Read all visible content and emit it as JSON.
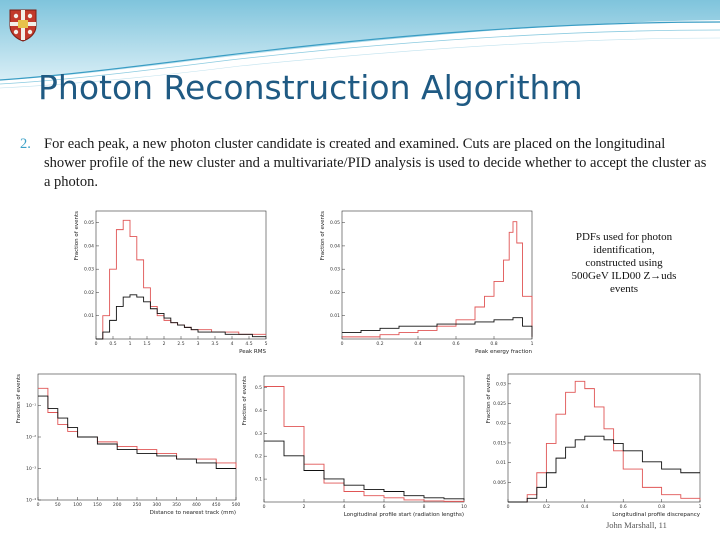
{
  "slide": {
    "title": "Photon Reconstruction Algorithm",
    "bullet_number": "2.",
    "bullet_text": "For each peak, a new photon cluster candidate is created and examined. Cuts are placed on the longitudinal shower profile of the new cluster and a multivariate/PID analysis is used to decide whether to accept the cluster as a photon.",
    "pdf_note": "PDFs used for photon identification, constructed using 500GeV ILD00 Z→uds events",
    "footer": "John Marshall, 11"
  },
  "colors": {
    "title": "#1f5a83",
    "bullet_number": "#3aa0c7",
    "signal": "#e05555",
    "background": "#111111"
  },
  "chart_data": [
    {
      "type": "line",
      "xlabel": "Peak RMS",
      "ylabel": "Fraction of events",
      "xlim": [
        0,
        5
      ],
      "ylim": [
        0,
        0.055
      ],
      "xticks": [
        "0",
        "0.5",
        "1",
        "1.5",
        "2",
        "2.5",
        "3",
        "3.5",
        "4",
        "4.5",
        "5"
      ],
      "yticks": [
        "0.01",
        "0.02",
        "0.03",
        "0.04",
        "0.05"
      ],
      "series": [
        {
          "color": "#e05555",
          "x": [
            0,
            0.2,
            0.4,
            0.6,
            0.8,
            1.0,
            1.2,
            1.4,
            1.6,
            1.8,
            2.0,
            2.2,
            2.4,
            2.6,
            2.8,
            3.0,
            3.4,
            3.8,
            4.2,
            4.6,
            5.0
          ],
          "y": [
            0,
            0.01,
            0.03,
            0.047,
            0.051,
            0.044,
            0.034,
            0.022,
            0.014,
            0.01,
            0.008,
            0.007,
            0.006,
            0.005,
            0.004,
            0.004,
            0.003,
            0.003,
            0.002,
            0.002,
            0.002
          ]
        },
        {
          "color": "#111111",
          "x": [
            0,
            0.2,
            0.4,
            0.6,
            0.8,
            1.0,
            1.2,
            1.4,
            1.6,
            1.8,
            2.0,
            2.2,
            2.4,
            2.6,
            2.8,
            3.0,
            3.4,
            3.8,
            4.2,
            4.6,
            5.0
          ],
          "y": [
            0,
            0.003,
            0.008,
            0.014,
            0.018,
            0.019,
            0.018,
            0.016,
            0.013,
            0.011,
            0.009,
            0.007,
            0.006,
            0.005,
            0.004,
            0.003,
            0.003,
            0.002,
            0.002,
            0.001,
            0.001
          ]
        }
      ]
    },
    {
      "type": "line",
      "xlabel": "Peak energy fraction",
      "ylabel": "Fraction of events",
      "xlim": [
        0,
        1
      ],
      "ylim": [
        0,
        0.06
      ],
      "xticks": [
        "0",
        "0.2",
        "0.4",
        "0.6",
        "0.8",
        "1"
      ],
      "yticks": [
        "0.01",
        "0.02",
        "0.03",
        "0.04",
        "0.05"
      ],
      "series": [
        {
          "color": "#e05555",
          "x": [
            0,
            0.1,
            0.2,
            0.3,
            0.4,
            0.5,
            0.6,
            0.7,
            0.75,
            0.8,
            0.85,
            0.88,
            0.9,
            0.92,
            0.95,
            1.0
          ],
          "y": [
            0.001,
            0.001,
            0.002,
            0.003,
            0.004,
            0.006,
            0.009,
            0.015,
            0.02,
            0.027,
            0.037,
            0.05,
            0.055,
            0.045,
            0.02,
            0.001
          ]
        },
        {
          "color": "#111111",
          "x": [
            0,
            0.1,
            0.2,
            0.3,
            0.4,
            0.5,
            0.6,
            0.7,
            0.8,
            0.9,
            0.95,
            1.0
          ],
          "y": [
            0.003,
            0.004,
            0.005,
            0.006,
            0.006,
            0.007,
            0.007,
            0.008,
            0.009,
            0.01,
            0.006,
            0.001
          ]
        }
      ]
    },
    {
      "type": "line",
      "xlabel": "Distance to nearest track (mm)",
      "ylabel": "Fraction of events",
      "xlim": [
        0,
        500
      ],
      "ylim": [
        0,
        1
      ],
      "ylog": true,
      "xticks": [
        "0",
        "50",
        "100",
        "150",
        "200",
        "250",
        "300",
        "350",
        "400",
        "450",
        "500"
      ],
      "yticks": [
        "10⁻¹",
        "10⁻²",
        "10⁻³",
        "10⁻⁴"
      ],
      "series": [
        {
          "color": "#e05555",
          "x": [
            0,
            25,
            50,
            75,
            100,
            150,
            200,
            250,
            300,
            350,
            400,
            450,
            500
          ],
          "y": [
            0.35,
            0.06,
            0.025,
            0.015,
            0.01,
            0.007,
            0.005,
            0.004,
            0.003,
            0.002,
            0.002,
            0.0015,
            0.001
          ]
        },
        {
          "color": "#111111",
          "x": [
            0,
            25,
            50,
            75,
            100,
            150,
            200,
            250,
            300,
            350,
            400,
            450,
            500
          ],
          "y": [
            0.2,
            0.08,
            0.04,
            0.02,
            0.01,
            0.006,
            0.004,
            0.003,
            0.0025,
            0.002,
            0.0015,
            0.001,
            0.001
          ]
        }
      ]
    },
    {
      "type": "line",
      "xlabel": "Longitudinal profile start (radiation lengths)",
      "ylabel": "Fraction of events",
      "xlim": [
        0,
        10
      ],
      "ylim": [
        0,
        0.6
      ],
      "xticks": [
        "0",
        "2",
        "4",
        "6",
        "8",
        "10"
      ],
      "yticks": [
        "0.1",
        "0.2",
        "0.3",
        "0.4",
        "0.5"
      ],
      "series": [
        {
          "color": "#e05555",
          "x": [
            0,
            1,
            2,
            3,
            4,
            5,
            6,
            7,
            8,
            9,
            10
          ],
          "y": [
            0.55,
            0.36,
            0.18,
            0.09,
            0.05,
            0.03,
            0.02,
            0.01,
            0.005,
            0.003,
            0.002
          ]
        },
        {
          "color": "#111111",
          "x": [
            0,
            1,
            2,
            3,
            4,
            5,
            6,
            7,
            8,
            9,
            10
          ],
          "y": [
            0.29,
            0.22,
            0.15,
            0.11,
            0.08,
            0.06,
            0.05,
            0.03,
            0.02,
            0.015,
            0.01
          ]
        }
      ]
    },
    {
      "type": "line",
      "xlabel": "Longitudinal profile discrepancy",
      "ylabel": "Fraction of events",
      "xlim": [
        0,
        1
      ],
      "ylim": [
        0,
        0.035
      ],
      "xticks": [
        "0",
        "0.2",
        "0.4",
        "0.6",
        "0.8",
        "1"
      ],
      "yticks": [
        "0.005",
        "0.01",
        "0.015",
        "0.02",
        "0.025",
        "0.03"
      ],
      "series": [
        {
          "color": "#e05555",
          "x": [
            0,
            0.1,
            0.15,
            0.2,
            0.25,
            0.3,
            0.35,
            0.4,
            0.45,
            0.5,
            0.55,
            0.6,
            0.7,
            0.8,
            0.9,
            1.0
          ],
          "y": [
            0,
            0.002,
            0.008,
            0.016,
            0.024,
            0.03,
            0.033,
            0.031,
            0.026,
            0.02,
            0.014,
            0.009,
            0.004,
            0.002,
            0.001,
            0.0005
          ]
        },
        {
          "color": "#111111",
          "x": [
            0,
            0.1,
            0.15,
            0.2,
            0.25,
            0.3,
            0.35,
            0.4,
            0.45,
            0.5,
            0.55,
            0.6,
            0.7,
            0.8,
            0.9,
            1.0
          ],
          "y": [
            0,
            0.001,
            0.004,
            0.008,
            0.012,
            0.015,
            0.017,
            0.018,
            0.018,
            0.017,
            0.016,
            0.014,
            0.011,
            0.009,
            0.008,
            0.008
          ]
        }
      ]
    }
  ]
}
